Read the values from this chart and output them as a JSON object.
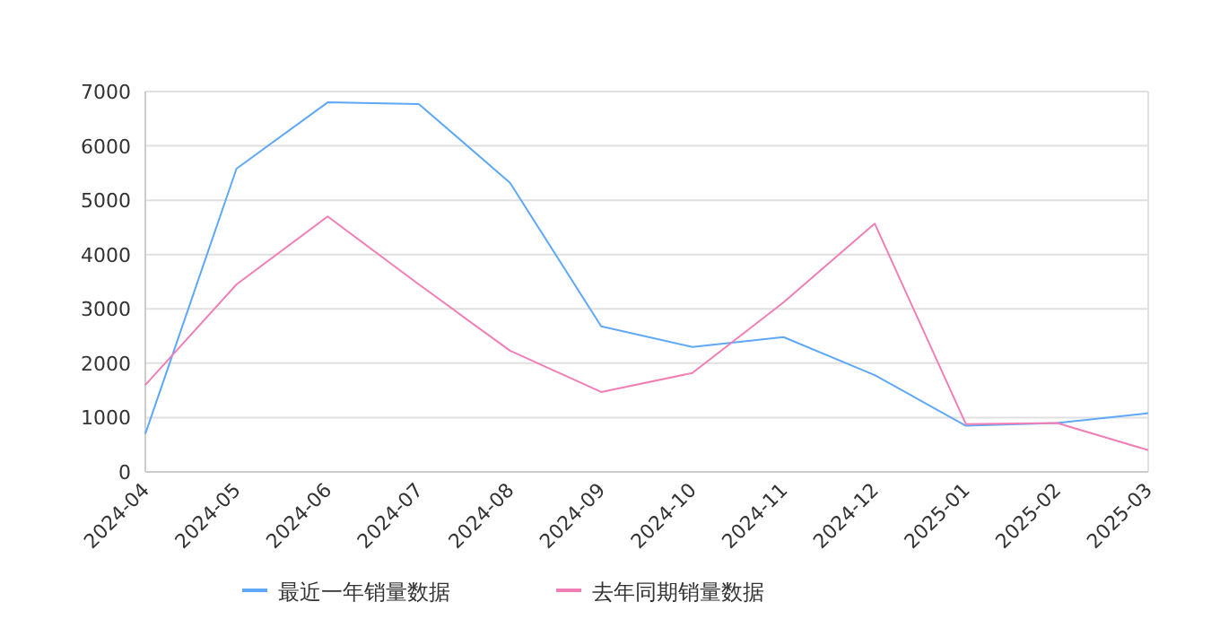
{
  "chart_data": {
    "type": "line",
    "categories": [
      "2024-04",
      "2024-05",
      "2024-06",
      "2024-07",
      "2024-08",
      "2024-09",
      "2024-10",
      "2024-11",
      "2024-12",
      "2025-01",
      "2025-02",
      "2025-03"
    ],
    "series": [
      {
        "name": "最近一年销量数据",
        "color": "#5fa8f5",
        "values": [
          700,
          5580,
          6800,
          6770,
          5320,
          2680,
          2300,
          2480,
          1780,
          850,
          900,
          1080
        ]
      },
      {
        "name": "去年同期销量数据",
        "color": "#f07fb6",
        "values": [
          1600,
          3450,
          4700,
          3450,
          2230,
          1470,
          1820,
          3120,
          4570,
          880,
          900,
          400
        ]
      }
    ],
    "ylim": [
      0,
      7000
    ],
    "yticks": [
      0,
      1000,
      2000,
      3000,
      4000,
      5000,
      6000,
      7000
    ],
    "grid": "y",
    "legend": "bottom",
    "marker": "none",
    "line_style": "solid"
  }
}
